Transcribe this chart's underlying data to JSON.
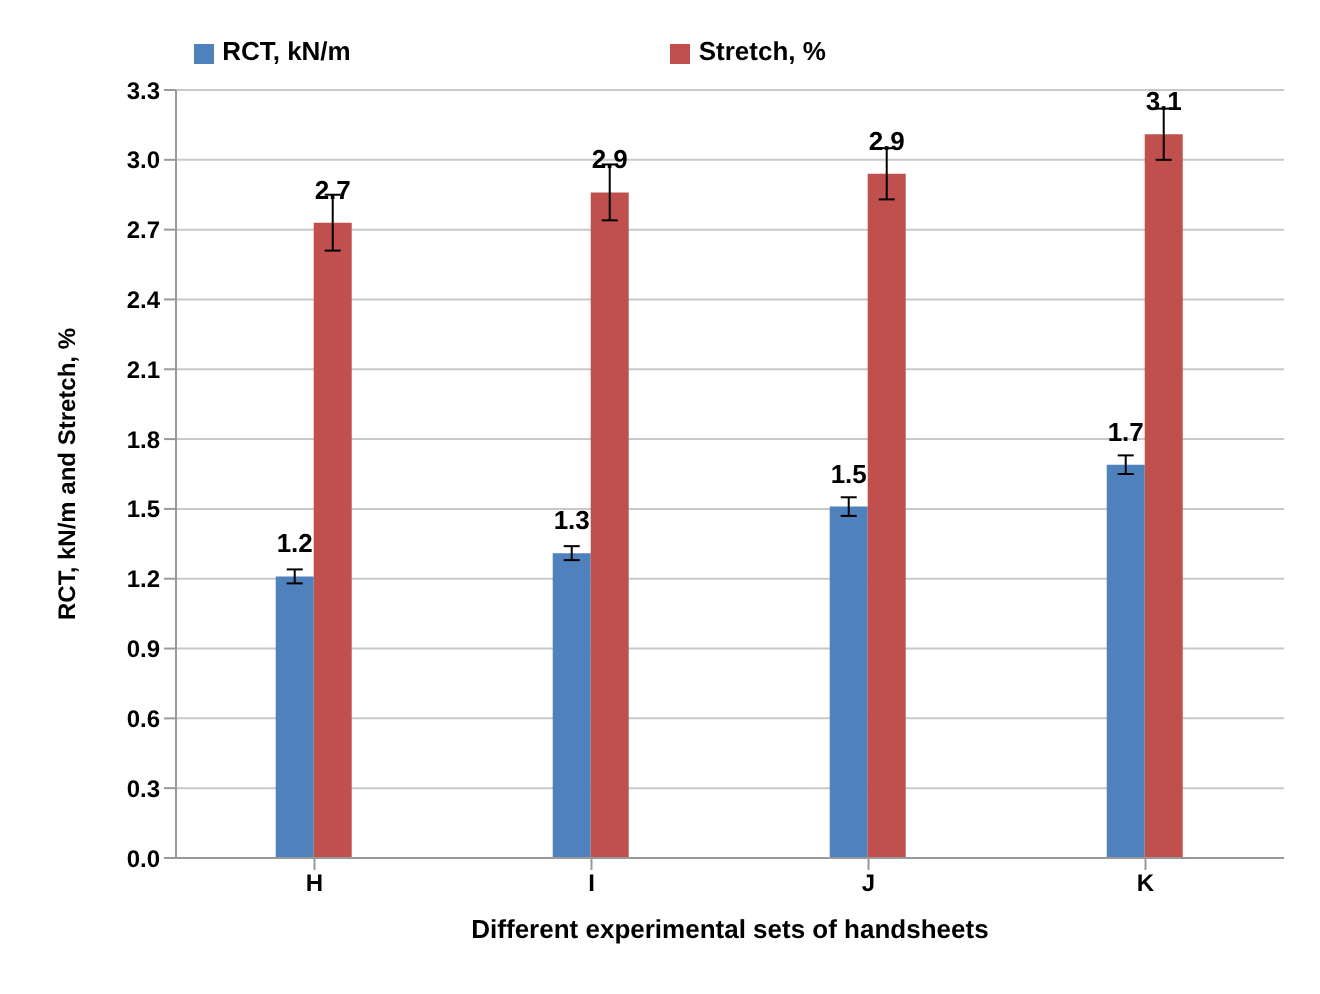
{
  "chart_data": {
    "type": "bar",
    "xlabel": "Different experimental sets of handsheets",
    "ylabel": "RCT, kN/m and Stretch, %",
    "categories": [
      "H",
      "I",
      "J",
      "K"
    ],
    "series": [
      {
        "name": "RCT, kN/m",
        "color": "#4f81bd",
        "values": [
          1.21,
          1.31,
          1.51,
          1.69
        ],
        "errors": [
          0.03,
          0.03,
          0.04,
          0.04
        ],
        "value_labels": [
          "1.2",
          "1.3",
          "1.5",
          "1.7"
        ]
      },
      {
        "name": "Stretch, %",
        "color": "#c0504d",
        "values": [
          2.73,
          2.86,
          2.94,
          3.11
        ],
        "errors": [
          0.12,
          0.12,
          0.11,
          0.11
        ],
        "value_labels": [
          "2.7",
          "2.9",
          "2.9",
          "3.1"
        ]
      }
    ],
    "ylim": [
      0,
      3.3
    ],
    "yticks": [
      "0.0",
      0.3,
      0.6,
      0.9,
      1.2,
      1.5,
      1.8,
      2.1,
      2.4,
      2.7,
      "3.0",
      3.3
    ],
    "grid": "y",
    "legend": "top"
  }
}
